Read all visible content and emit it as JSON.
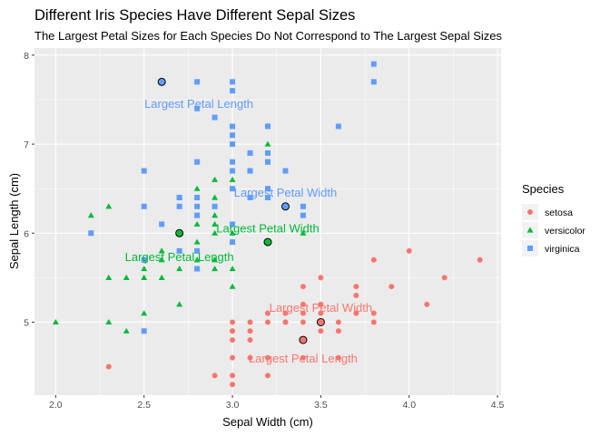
{
  "chart_data": {
    "type": "scatter",
    "title": "Different Iris Species Have Different Sepal Sizes",
    "subtitle": "The Largest Petal Sizes for Each Species Do Not Correspond to The Largest Sepal Sizes",
    "xlabel": "Sepal Width (cm)",
    "ylabel": "Sepal Length (cm)",
    "xlim": [
      1.88,
      4.52
    ],
    "ylim": [
      4.18,
      8.08
    ],
    "xticks": [
      2.0,
      2.5,
      3.0,
      3.5,
      4.0,
      4.5
    ],
    "xtick_labels": [
      "2.0",
      "2.5",
      "3.0",
      "3.5",
      "4.0",
      "4.5"
    ],
    "yticks": [
      5,
      6,
      7,
      8
    ],
    "ytick_labels": [
      "5",
      "6",
      "7",
      "8"
    ],
    "grid": true,
    "legend": {
      "title": "Species",
      "position": "right",
      "entries": [
        {
          "label": "setosa",
          "color": "#F8766D",
          "shape": "circle"
        },
        {
          "label": "versicolor",
          "color": "#00BA38",
          "shape": "triangle"
        },
        {
          "label": "virginica",
          "color": "#619CFF",
          "shape": "square"
        }
      ]
    },
    "series": [
      {
        "name": "setosa",
        "color": "#F8766D",
        "shape": "circle",
        "points": [
          [
            2.3,
            4.5
          ],
          [
            2.9,
            4.4
          ],
          [
            3.0,
            4.4
          ],
          [
            3.2,
            4.4
          ],
          [
            3.0,
            4.3
          ],
          [
            3.0,
            4.6
          ],
          [
            3.1,
            4.6
          ],
          [
            3.2,
            4.6
          ],
          [
            3.4,
            4.6
          ],
          [
            3.6,
            4.6
          ],
          [
            3.0,
            4.8
          ],
          [
            3.0,
            4.9
          ],
          [
            3.1,
            4.8
          ],
          [
            3.1,
            4.9
          ],
          [
            3.4,
            4.8
          ],
          [
            3.6,
            4.9
          ],
          [
            3.0,
            5.0
          ],
          [
            3.2,
            5.0
          ],
          [
            3.3,
            5.0
          ],
          [
            3.4,
            5.0
          ],
          [
            3.5,
            5.0
          ],
          [
            3.6,
            5.0
          ],
          [
            3.0,
            4.9
          ],
          [
            3.3,
            5.1
          ],
          [
            3.4,
            5.1
          ],
          [
            3.5,
            5.1
          ],
          [
            3.7,
            5.1
          ],
          [
            3.8,
            5.1
          ],
          [
            3.4,
            5.2
          ],
          [
            3.5,
            5.2
          ],
          [
            4.1,
            5.2
          ],
          [
            3.7,
            5.3
          ],
          [
            3.4,
            5.4
          ],
          [
            3.7,
            5.4
          ],
          [
            3.9,
            5.4
          ],
          [
            3.5,
            5.5
          ],
          [
            4.2,
            5.5
          ],
          [
            3.8,
            5.7
          ],
          [
            4.4,
            5.7
          ],
          [
            4.0,
            5.8
          ],
          [
            3.2,
            5.1
          ],
          [
            3.8,
            5.0
          ],
          [
            3.1,
            5.0
          ],
          [
            3.3,
            5.0
          ],
          [
            3.5,
            4.9
          ]
        ],
        "highlighted": [
          [
            3.4,
            4.8
          ],
          [
            3.5,
            5.0
          ]
        ]
      },
      {
        "name": "versicolor",
        "color": "#00BA38",
        "shape": "triangle",
        "points": [
          [
            2.0,
            5.0
          ],
          [
            2.2,
            6.2
          ],
          [
            2.3,
            5.0
          ],
          [
            2.3,
            5.5
          ],
          [
            2.3,
            6.3
          ],
          [
            2.4,
            4.9
          ],
          [
            2.4,
            5.5
          ],
          [
            2.5,
            5.1
          ],
          [
            2.5,
            5.5
          ],
          [
            2.5,
            5.6
          ],
          [
            2.5,
            6.3
          ],
          [
            2.6,
            5.5
          ],
          [
            2.6,
            5.7
          ],
          [
            2.6,
            5.8
          ],
          [
            2.7,
            5.2
          ],
          [
            2.7,
            5.6
          ],
          [
            2.7,
            5.8
          ],
          [
            2.7,
            6.0
          ],
          [
            2.8,
            5.6
          ],
          [
            2.8,
            5.7
          ],
          [
            2.8,
            5.9
          ],
          [
            2.8,
            6.1
          ],
          [
            2.8,
            6.5
          ],
          [
            2.8,
            6.8
          ],
          [
            2.9,
            5.6
          ],
          [
            2.9,
            5.7
          ],
          [
            2.9,
            6.0
          ],
          [
            2.9,
            6.1
          ],
          [
            2.9,
            6.2
          ],
          [
            2.9,
            6.4
          ],
          [
            2.9,
            6.6
          ],
          [
            3.0,
            5.4
          ],
          [
            3.0,
            5.6
          ],
          [
            3.0,
            5.9
          ],
          [
            3.0,
            6.0
          ],
          [
            3.0,
            6.1
          ],
          [
            3.0,
            6.6
          ],
          [
            3.0,
            6.7
          ],
          [
            3.1,
            6.7
          ],
          [
            3.1,
            6.9
          ],
          [
            3.2,
            5.9
          ],
          [
            3.2,
            6.4
          ],
          [
            3.2,
            7.0
          ],
          [
            3.3,
            6.3
          ],
          [
            3.4,
            6.0
          ],
          [
            2.2,
            6.0
          ],
          [
            2.6,
            5.8
          ],
          [
            2.7,
            5.8
          ]
        ],
        "highlighted": [
          [
            2.7,
            6.0
          ],
          [
            3.2,
            5.9
          ]
        ]
      },
      {
        "name": "virginica",
        "color": "#619CFF",
        "shape": "square",
        "points": [
          [
            2.2,
            6.0
          ],
          [
            2.5,
            4.9
          ],
          [
            2.5,
            5.7
          ],
          [
            2.5,
            6.3
          ],
          [
            2.5,
            6.7
          ],
          [
            2.6,
            6.1
          ],
          [
            2.6,
            7.7
          ],
          [
            2.7,
            5.8
          ],
          [
            2.7,
            6.3
          ],
          [
            2.7,
            6.4
          ],
          [
            2.8,
            5.6
          ],
          [
            2.8,
            5.8
          ],
          [
            2.8,
            6.2
          ],
          [
            2.8,
            6.3
          ],
          [
            2.8,
            6.4
          ],
          [
            2.8,
            7.4
          ],
          [
            2.8,
            7.7
          ],
          [
            2.9,
            6.3
          ],
          [
            2.9,
            7.3
          ],
          [
            3.0,
            5.9
          ],
          [
            3.0,
            6.1
          ],
          [
            3.0,
            6.5
          ],
          [
            3.0,
            6.7
          ],
          [
            3.0,
            6.8
          ],
          [
            3.0,
            7.1
          ],
          [
            3.0,
            7.2
          ],
          [
            3.0,
            7.6
          ],
          [
            3.0,
            7.7
          ],
          [
            3.1,
            6.4
          ],
          [
            3.1,
            6.7
          ],
          [
            3.1,
            6.9
          ],
          [
            3.2,
            6.4
          ],
          [
            3.2,
            6.5
          ],
          [
            3.2,
            6.8
          ],
          [
            3.2,
            6.9
          ],
          [
            3.2,
            7.2
          ],
          [
            3.3,
            6.3
          ],
          [
            3.3,
            6.7
          ],
          [
            3.4,
            6.2
          ],
          [
            3.4,
            6.3
          ],
          [
            3.6,
            7.2
          ],
          [
            3.8,
            7.7
          ],
          [
            3.8,
            7.9
          ],
          [
            3.1,
            6.7
          ],
          [
            2.7,
            6.4
          ],
          [
            2.8,
            6.8
          ],
          [
            3.0,
            7.0
          ],
          [
            3.2,
            6.8
          ]
        ],
        "highlighted": [
          [
            2.6,
            7.7
          ],
          [
            3.3,
            6.3
          ]
        ]
      }
    ],
    "annotations": [
      {
        "text": "Largest Petal Length",
        "x": 2.81,
        "y": 7.46,
        "color": "#619CFF"
      },
      {
        "text": "Largest Petal Width",
        "x": 3.3,
        "y": 6.46,
        "color": "#619CFF"
      },
      {
        "text": "Largest Petal Width",
        "x": 3.2,
        "y": 6.06,
        "color": "#00BA38"
      },
      {
        "text": "Largest Petal Length",
        "x": 2.7,
        "y": 5.74,
        "color": "#00BA38"
      },
      {
        "text": "Largest Petal Width",
        "x": 3.5,
        "y": 5.17,
        "color": "#F8766D"
      },
      {
        "text": "Largest Petal Length",
        "x": 3.4,
        "y": 4.6,
        "color": "#F8766D"
      }
    ]
  }
}
